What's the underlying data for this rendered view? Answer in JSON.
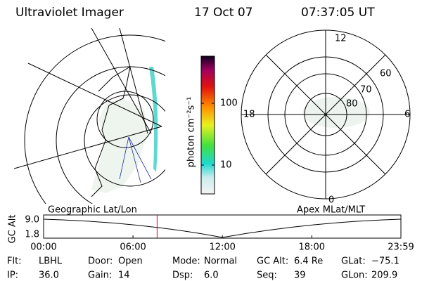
{
  "header": {
    "title": "Ultraviolet Imager",
    "date": "17 Oct 07",
    "time": "07:37:05 UT"
  },
  "colorbar": {
    "label": "photon cm⁻²s⁻¹",
    "ticks": [
      10,
      100
    ]
  },
  "polar": {
    "mlt_labels": [
      "12",
      "18",
      "6",
      "0"
    ],
    "lat_labels": [
      "60",
      "70",
      "80"
    ]
  },
  "altitude_plot": {
    "left_label": "Geographic Lat/Lon",
    "right_label": "Apex MLat/MLT",
    "ylabel": "GC Alt",
    "yticks": [
      {
        "value": 9,
        "label": "9.0"
      },
      {
        "value": 1.8,
        "label": "1.8"
      }
    ],
    "xticks": [
      "00:00",
      "06:00",
      "12:00",
      "18:00",
      "23:59"
    ]
  },
  "footer": [
    [
      {
        "label": "Flt:",
        "value": "LBHL"
      },
      {
        "label": "Door:",
        "value": "Open"
      },
      {
        "label": "Mode:",
        "value": "Normal"
      },
      {
        "label": "GC Alt:",
        "value": "6.4 Re"
      },
      {
        "label": "GLat:",
        "value": "−75.1"
      }
    ],
    [
      {
        "label": "IP:",
        "value": "36.0"
      },
      {
        "label": "Gain:",
        "value": "14"
      },
      {
        "label": "Dsp:",
        "value": "6.0"
      },
      {
        "label": "Seq:",
        "value": "39"
      },
      {
        "label": "GLon:",
        "value": "209.9"
      }
    ]
  ]
}
